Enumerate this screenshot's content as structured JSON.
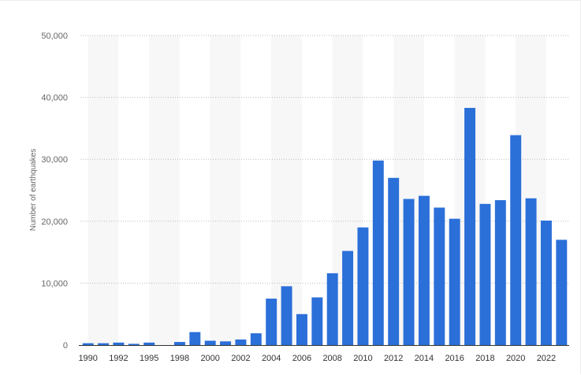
{
  "chart_data": {
    "type": "bar",
    "title": "",
    "xlabel": "",
    "ylabel": "Number of earthquakes",
    "ylim": [
      0,
      50000
    ],
    "y_ticks": [
      0,
      10000,
      20000,
      30000,
      40000,
      50000
    ],
    "y_tick_labels": [
      "0",
      "10,000",
      "20,000",
      "30,000",
      "40,000",
      "50,000"
    ],
    "x_tick_labels": [
      "1990",
      "1992",
      "1995",
      "1998",
      "2000",
      "2002",
      "2004",
      "2006",
      "2008",
      "2010",
      "2012",
      "2014",
      "2016",
      "2018",
      "2020",
      "2022"
    ],
    "x_tick_every": 2,
    "grid": true,
    "bar_color": "#2b6fd9",
    "band_color": "#f7f7f7",
    "categories": [
      "1990",
      "1991",
      "1992",
      "1993",
      "1995",
      "1996",
      "1998",
      "1999",
      "2000",
      "2001",
      "2002",
      "2003",
      "2004",
      "2005",
      "2006",
      "2007",
      "2008",
      "2009",
      "2010",
      "2011",
      "2012",
      "2013",
      "2014",
      "2015",
      "2016",
      "2017",
      "2018",
      "2019",
      "2020",
      "2021",
      "2022",
      "2023"
    ],
    "values": [
      300,
      300,
      400,
      200,
      400,
      0,
      500,
      2100,
      700,
      600,
      900,
      1900,
      7500,
      9500,
      5000,
      7700,
      11600,
      15200,
      19000,
      29800,
      27000,
      23600,
      24100,
      22200,
      20400,
      38300,
      22800,
      23400,
      33900,
      23700,
      20100,
      17000
    ]
  }
}
